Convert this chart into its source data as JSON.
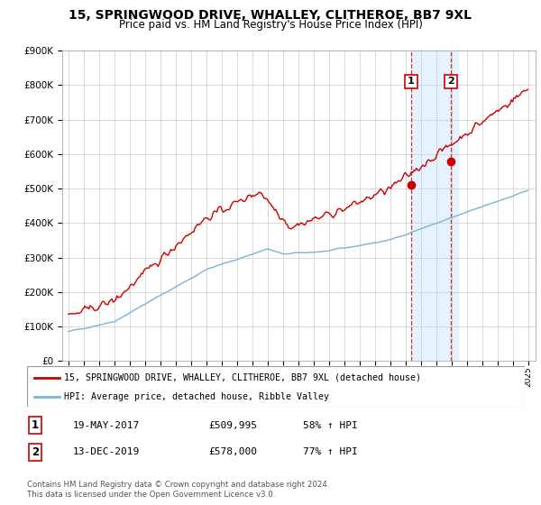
{
  "title": "15, SPRINGWOOD DRIVE, WHALLEY, CLITHEROE, BB7 9XL",
  "subtitle": "Price paid vs. HM Land Registry's House Price Index (HPI)",
  "hpi_color": "#7ab4d8",
  "price_color": "#cc0000",
  "marker_color": "#cc0000",
  "highlight_bg": "#ddeeff",
  "legend_line1": "15, SPRINGWOOD DRIVE, WHALLEY, CLITHEROE, BB7 9XL (detached house)",
  "legend_line2": "HPI: Average price, detached house, Ribble Valley",
  "table_row1": [
    "1",
    "19-MAY-2017",
    "£509,995",
    "58% ↑ HPI"
  ],
  "table_row2": [
    "2",
    "13-DEC-2019",
    "£578,000",
    "77% ↑ HPI"
  ],
  "footnote": "Contains HM Land Registry data © Crown copyright and database right 2024.\nThis data is licensed under the Open Government Licence v3.0.",
  "ylim": [
    0,
    900000
  ],
  "yticks": [
    0,
    100000,
    200000,
    300000,
    400000,
    500000,
    600000,
    700000,
    800000,
    900000
  ],
  "ytick_labels": [
    "£0",
    "£100K",
    "£200K",
    "£300K",
    "£400K",
    "£500K",
    "£600K",
    "£700K",
    "£800K",
    "£900K"
  ],
  "t1_year": 2017.38,
  "t1_price": 509995,
  "t2_year": 2019.96,
  "t2_price": 578000
}
